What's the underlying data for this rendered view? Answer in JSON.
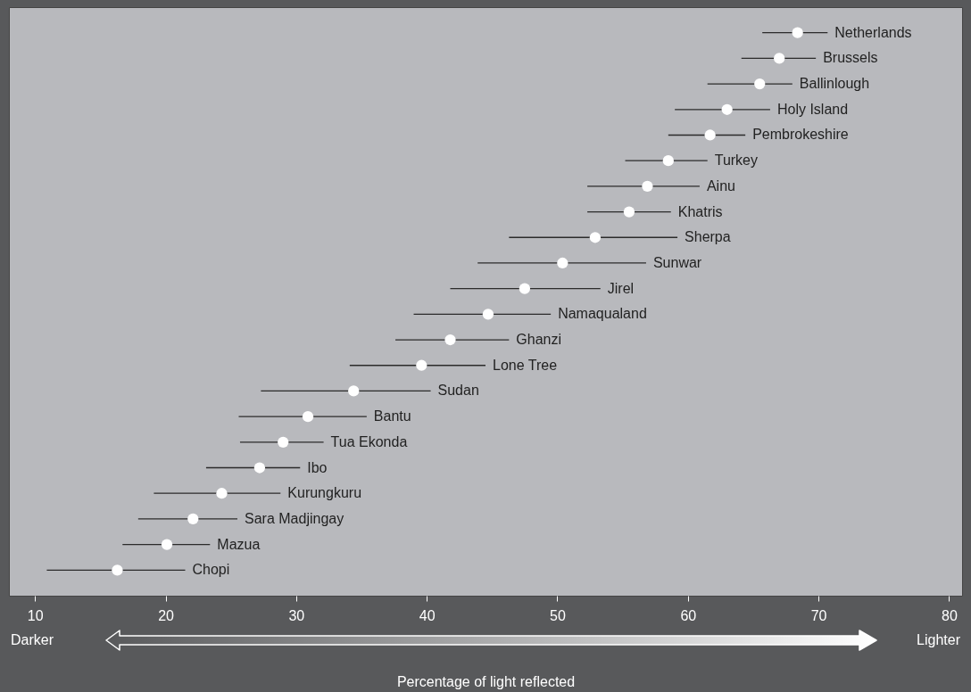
{
  "chart_data": {
    "type": "scatter",
    "orientation": "horizontal",
    "xlabel": "Percentage of light reflected",
    "categories": [
      "Netherlands",
      "Brussels",
      "Ballinlough",
      "Holy Island",
      "Pembrokeshire",
      "Turkey",
      "Ainu",
      "Khatris",
      "Sherpa",
      "Sunwar",
      "Jirel",
      "Namaqualand",
      "Ghanzi",
      "Lone Tree",
      "Sudan",
      "Bantu",
      "Tua Ekonda",
      "Ibo",
      "Kurungkuru",
      "Sara Madjingay",
      "Mazua",
      "Chopi"
    ],
    "series": [
      {
        "color": "#ffffff",
        "values": [
          68.4,
          67.0,
          65.5,
          63.0,
          61.7,
          58.5,
          56.9,
          55.5,
          52.9,
          50.4,
          47.5,
          44.7,
          41.8,
          39.6,
          34.4,
          30.9,
          29.0,
          27.2,
          24.3,
          22.1,
          20.1,
          16.3
        ],
        "errors": [
          [
            65.7,
            70.7
          ],
          [
            64.1,
            69.8
          ],
          [
            61.5,
            68.0
          ],
          [
            59.0,
            66.3
          ],
          [
            58.5,
            64.4
          ],
          [
            55.2,
            61.5
          ],
          [
            52.3,
            60.9
          ],
          [
            52.3,
            58.7
          ],
          [
            46.3,
            59.2
          ],
          [
            43.9,
            56.8
          ],
          [
            41.8,
            53.3
          ],
          [
            39.0,
            49.5
          ],
          [
            37.6,
            46.3
          ],
          [
            34.1,
            44.5
          ],
          [
            27.3,
            40.3
          ],
          [
            25.6,
            35.4
          ],
          [
            25.7,
            32.1
          ],
          [
            23.1,
            30.3
          ],
          [
            19.1,
            28.8
          ],
          [
            17.9,
            25.5
          ],
          [
            16.7,
            23.4
          ],
          [
            10.9,
            21.5
          ]
        ]
      }
    ],
    "xlim": [
      8,
      81
    ],
    "xticks": [
      10,
      20,
      30,
      40,
      50,
      60,
      70,
      80
    ],
    "marker": "circle",
    "annotations": [
      "Darker",
      "Lighter"
    ]
  }
}
